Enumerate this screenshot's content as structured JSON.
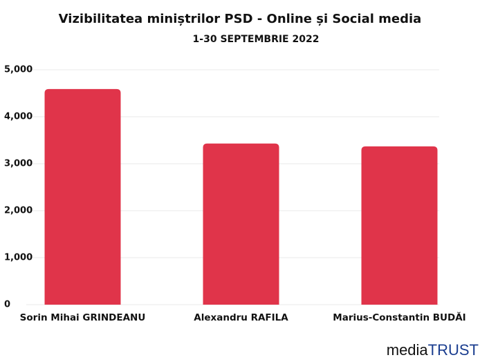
{
  "chart_data": {
    "type": "bar",
    "title": "Vizibilitatea miniștrilor PSD - Online și Social media",
    "subtitle": "1-30 SEPTEMBRIE 2022",
    "categories": [
      "Sorin Mihai GRINDEANU",
      "Alexandru RAFILA",
      "Marius-Constantin BUDĂI"
    ],
    "values": [
      4590,
      3430,
      3370
    ],
    "color": "#e0344a",
    "ylim": [
      0,
      5000
    ],
    "yticks": [
      0,
      {
        "value": 1000,
        "label": "1,000"
      },
      {
        "value": 2000,
        "label": "2,000"
      },
      {
        "value": 3000,
        "label": "3,000"
      },
      {
        "value": 4000,
        "label": "4,000"
      },
      {
        "value": 5000,
        "label": "5,000"
      }
    ],
    "grid": true
  },
  "logo": {
    "prefix": "media",
    "suffix": "TRUST"
  }
}
